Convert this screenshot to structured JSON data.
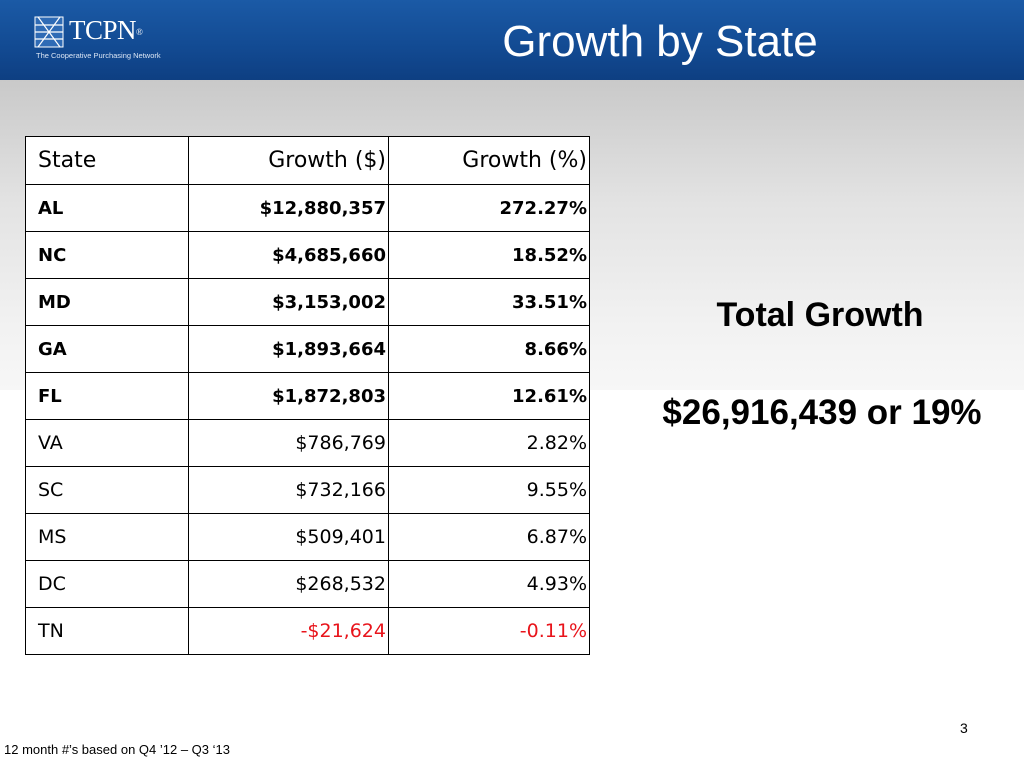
{
  "header": {
    "logo_text": "TCPN",
    "logo_sup": "®",
    "logo_subtitle": "The Cooperative Purchasing Network",
    "title": "Growth by State"
  },
  "table": {
    "headers": [
      "State",
      "Growth ($)",
      "Growth (%)"
    ],
    "rows": [
      {
        "state": "AL",
        "growth_dollar": "$12,880,357",
        "growth_pct": "272.27%",
        "bold": true,
        "negative": false
      },
      {
        "state": "NC",
        "growth_dollar": "$4,685,660",
        "growth_pct": "18.52%",
        "bold": true,
        "negative": false
      },
      {
        "state": "MD",
        "growth_dollar": "$3,153,002",
        "growth_pct": "33.51%",
        "bold": true,
        "negative": false
      },
      {
        "state": "GA",
        "growth_dollar": "$1,893,664",
        "growth_pct": "8.66%",
        "bold": true,
        "negative": false
      },
      {
        "state": "FL",
        "growth_dollar": "$1,872,803",
        "growth_pct": "12.61%",
        "bold": true,
        "negative": false
      },
      {
        "state": "VA",
        "growth_dollar": "$786,769",
        "growth_pct": "2.82%",
        "bold": false,
        "negative": false
      },
      {
        "state": "SC",
        "growth_dollar": "$732,166",
        "growth_pct": "9.55%",
        "bold": false,
        "negative": false
      },
      {
        "state": "MS",
        "growth_dollar": "$509,401",
        "growth_pct": "6.87%",
        "bold": false,
        "negative": false
      },
      {
        "state": "DC",
        "growth_dollar": "$268,532",
        "growth_pct": "4.93%",
        "bold": false,
        "negative": false
      },
      {
        "state": "TN",
        "growth_dollar": "-$21,624",
        "growth_pct": "-0.11%",
        "bold": false,
        "negative": true
      }
    ]
  },
  "summary": {
    "label": "Total Growth",
    "value": "$26,916,439 or 19%"
  },
  "page_number": "3",
  "footnote": "12 month #’s based on Q4 ’12 – Q3 ‘13",
  "colors": {
    "header_blue": "#124a92",
    "negative_red": "#e8141b"
  }
}
